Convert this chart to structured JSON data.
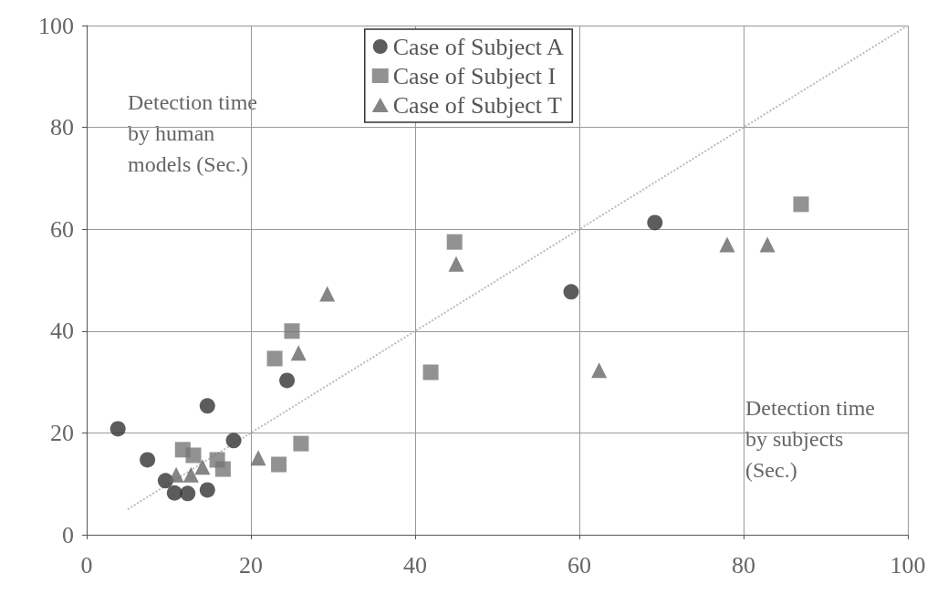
{
  "chart_data": {
    "type": "scatter",
    "xlabel": "Detection time by subjects (Sec.)",
    "ylabel": "Detection time by human models (Sec.)",
    "xlim": [
      0,
      100
    ],
    "xticks": [
      0,
      20,
      40,
      60,
      80,
      100
    ],
    "ylim": [
      0,
      100
    ],
    "yticks": [
      0,
      20,
      40,
      60,
      80,
      100
    ],
    "grid": true,
    "legend": "top",
    "series": [
      {
        "name": "Case of Subject A",
        "color": "#333333",
        "marker": "circle",
        "x": [
          3.8,
          7.4,
          9.6,
          10.7,
          12.3,
          14.7,
          14.7,
          17.9,
          24.4,
          59,
          69.2
        ],
        "values": [
          20.8,
          14.7,
          10.6,
          8.2,
          8.1,
          25.3,
          8.8,
          18.5,
          30.3,
          47.7,
          61.3
        ]
      },
      {
        "name": "Case of Subject I",
        "color": "#777777",
        "marker": "square",
        "x": [
          11.7,
          13,
          15.9,
          16.6,
          22.9,
          25,
          23.4,
          26.1,
          41.9,
          44.8,
          87
        ],
        "values": [
          16.7,
          15.6,
          14.7,
          12.9,
          34.6,
          40,
          13.8,
          17.9,
          31.9,
          57.5,
          64.9
        ]
      },
      {
        "name": "Case of Subject T",
        "color": "#666666",
        "marker": "triangle",
        "x": [
          10.9,
          12.7,
          14.1,
          20.9,
          25.8,
          29.3,
          45,
          62.4,
          78,
          82.9
        ],
        "values": [
          11.8,
          11.8,
          13.3,
          15.1,
          35.7,
          47.3,
          53.2,
          32.3,
          57,
          57
        ]
      },
      {
        "type": "line",
        "color": "#bbbbbb",
        "line_style": "dotted",
        "marker": "none",
        "x": [
          5,
          100
        ],
        "values": [
          5,
          100
        ]
      }
    ]
  }
}
